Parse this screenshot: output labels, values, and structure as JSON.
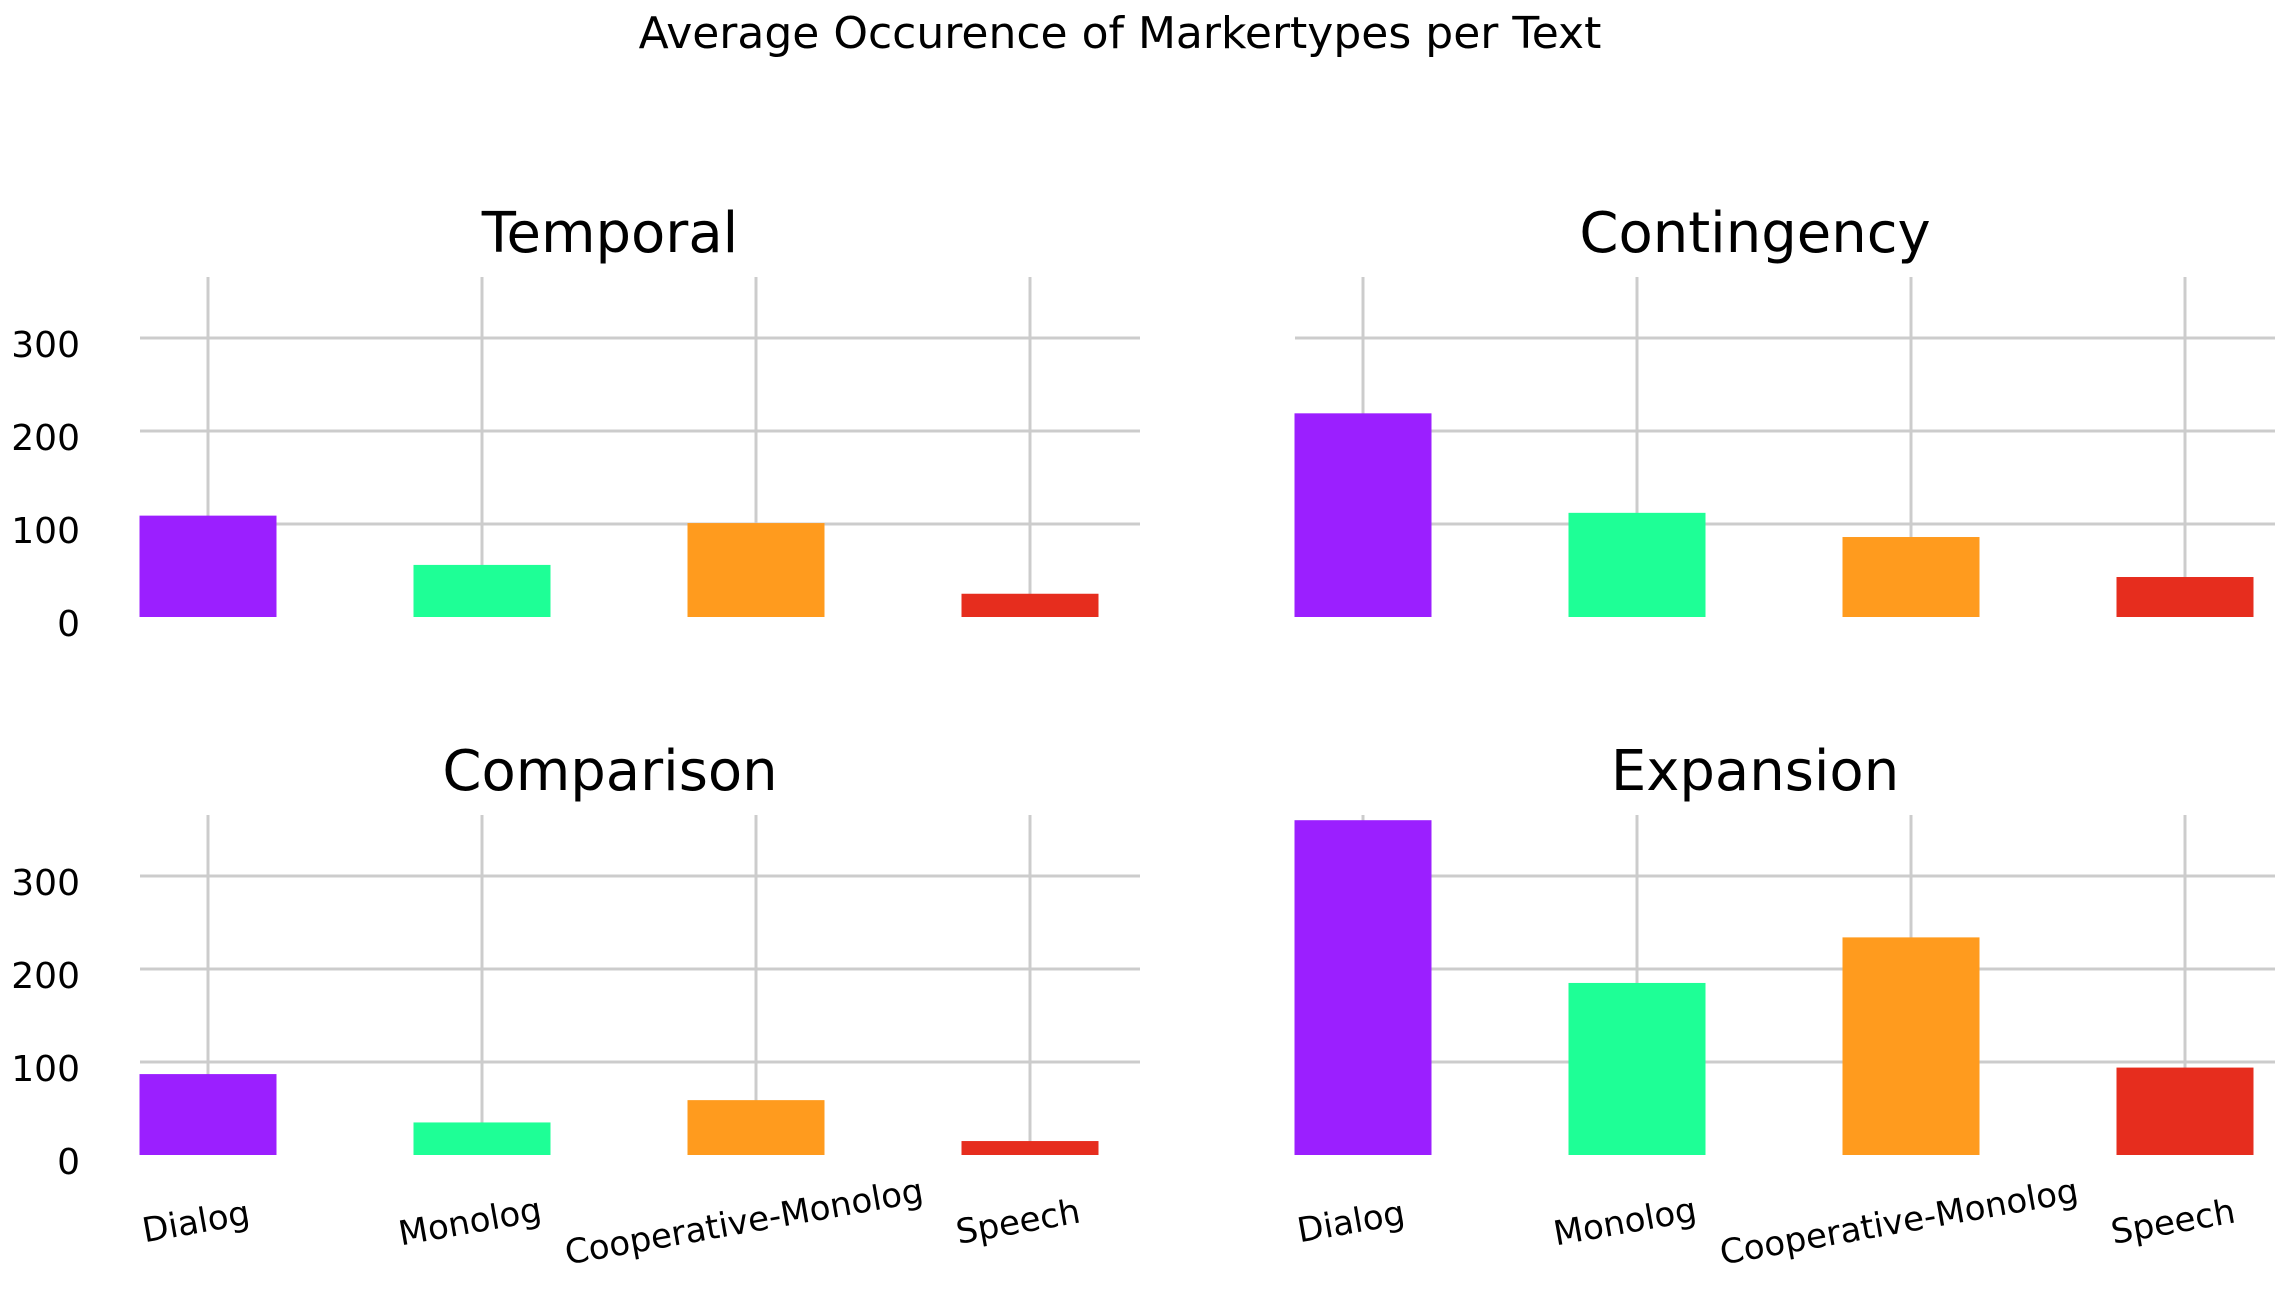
{
  "chart_data": {
    "type": "bar",
    "title": "Average Occurence of Markertypes per Text",
    "categories": [
      "Dialog",
      "Monolog",
      "Cooperative-Monolog",
      "Speech"
    ],
    "colors": [
      "#9b1fff",
      "#1eff96",
      "#ff9b1e",
      "#e62d1e"
    ],
    "yticks": [
      0,
      100,
      200,
      300
    ],
    "ylim": [
      0,
      370
    ],
    "grid": true,
    "panels": [
      {
        "title": "Temporal",
        "values": [
          109,
          56,
          101,
          25
        ]
      },
      {
        "title": "Contingency",
        "values": [
          219,
          112,
          86,
          43
        ]
      },
      {
        "title": "Comparison",
        "values": [
          87,
          35,
          59,
          15
        ]
      },
      {
        "title": "Expansion",
        "values": [
          360,
          185,
          234,
          94
        ]
      }
    ]
  }
}
